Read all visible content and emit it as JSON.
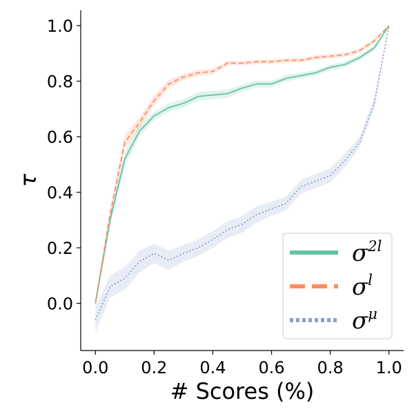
{
  "chart_data": {
    "type": "line",
    "title": "",
    "xlabel": "# Scores (%)",
    "ylabel": "τ",
    "xlim": [
      -0.05,
      1.05
    ],
    "ylim": [
      -0.17,
      1.055
    ],
    "xticks": [
      "0.0",
      "0.2",
      "0.4",
      "0.6",
      "0.8",
      "1.0"
    ],
    "yticks": [
      "0.0",
      "0.2",
      "0.4",
      "0.6",
      "0.8",
      "1.0"
    ],
    "xtick_values": [
      0.0,
      0.2,
      0.4,
      0.6,
      0.8,
      1.0
    ],
    "ytick_values": [
      0.0,
      0.2,
      0.4,
      0.6,
      0.8,
      1.0
    ],
    "grid": false,
    "legend_position": "bottom-right",
    "x": [
      0.0,
      0.05,
      0.1,
      0.15,
      0.2,
      0.25,
      0.3,
      0.35,
      0.4,
      0.45,
      0.5,
      0.55,
      0.6,
      0.65,
      0.7,
      0.75,
      0.8,
      0.85,
      0.9,
      0.95,
      1.0
    ],
    "series": [
      {
        "name": "σ2l",
        "legend_base": "σ",
        "legend_sup": "2l",
        "color": "#66c2a5",
        "style": "solid",
        "values": [
          0.0,
          0.3,
          0.52,
          0.62,
          0.675,
          0.705,
          0.72,
          0.745,
          0.75,
          0.755,
          0.775,
          0.79,
          0.79,
          0.81,
          0.82,
          0.83,
          0.85,
          0.86,
          0.885,
          0.92,
          1.0
        ],
        "band": [
          0.015,
          0.02,
          0.025,
          0.02,
          0.015,
          0.015,
          0.015,
          0.015,
          0.015,
          0.015,
          0.012,
          0.012,
          0.012,
          0.012,
          0.01,
          0.01,
          0.01,
          0.01,
          0.01,
          0.01,
          0.0
        ]
      },
      {
        "name": "σl",
        "legend_base": "σ",
        "legend_sup": "l",
        "color": "#fc8d62",
        "style": "dashed",
        "values": [
          0.0,
          0.32,
          0.58,
          0.65,
          0.73,
          0.79,
          0.815,
          0.83,
          0.835,
          0.865,
          0.865,
          0.87,
          0.87,
          0.875,
          0.875,
          0.885,
          0.89,
          0.895,
          0.91,
          0.945,
          1.0
        ],
        "band": [
          0.015,
          0.02,
          0.025,
          0.02,
          0.018,
          0.015,
          0.012,
          0.01,
          0.01,
          0.008,
          0.008,
          0.008,
          0.008,
          0.008,
          0.008,
          0.008,
          0.008,
          0.008,
          0.008,
          0.008,
          0.0
        ]
      },
      {
        "name": "σμ",
        "legend_base": "σ",
        "legend_sup": "μ",
        "color": "#8da0cb",
        "style": "dotted",
        "values": [
          -0.06,
          0.06,
          0.09,
          0.15,
          0.18,
          0.155,
          0.18,
          0.2,
          0.23,
          0.265,
          0.285,
          0.32,
          0.34,
          0.36,
          0.42,
          0.44,
          0.46,
          0.515,
          0.58,
          0.72,
          1.0
        ],
        "band": [
          0.045,
          0.04,
          0.04,
          0.04,
          0.035,
          0.035,
          0.03,
          0.03,
          0.03,
          0.03,
          0.03,
          0.03,
          0.025,
          0.025,
          0.025,
          0.025,
          0.025,
          0.025,
          0.02,
          0.02,
          0.0
        ]
      }
    ]
  }
}
